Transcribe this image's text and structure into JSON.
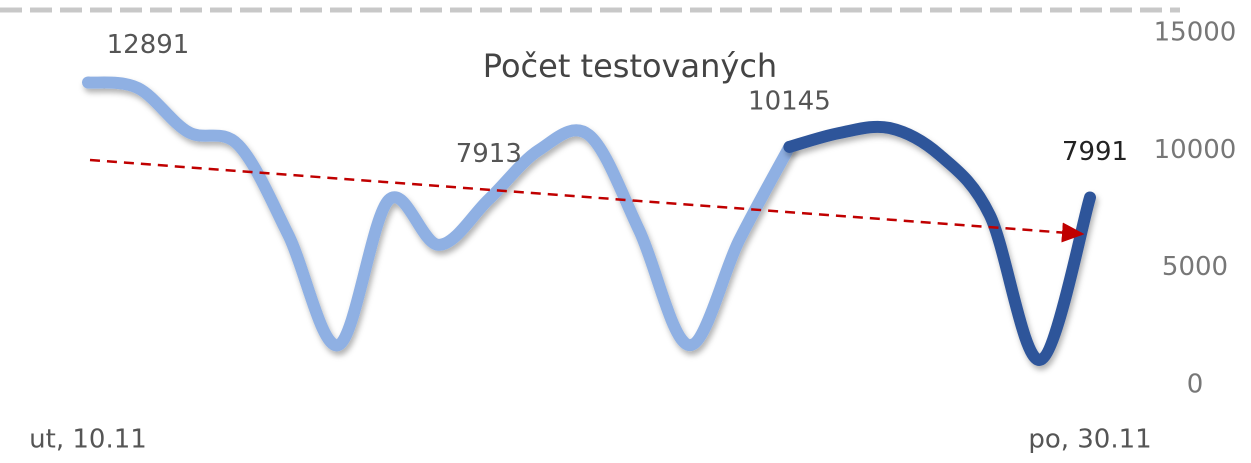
{
  "chart_data": {
    "type": "line",
    "title": "Počet testovaných",
    "categories": [
      "ut, 10.11",
      null,
      null,
      null,
      null,
      null,
      null,
      null,
      null,
      null,
      null,
      null,
      null,
      null,
      null,
      null,
      null,
      null,
      null,
      null,
      "po, 30.11"
    ],
    "series": [
      {
        "color": "#8fb0e3",
        "values": [
          12891,
          12650,
          10780,
          10230,
          6390,
          1700,
          7880,
          5970,
          7913,
          10010,
          10650,
          6600,
          1700,
          6180,
          10145,
          null,
          null,
          null,
          null,
          null,
          null
        ]
      },
      {
        "color": "#2f559a",
        "values": [
          null,
          null,
          null,
          null,
          null,
          null,
          null,
          null,
          null,
          null,
          null,
          null,
          null,
          null,
          10145,
          10740,
          10950,
          9800,
          7240,
          1070,
          7991
        ]
      }
    ],
    "value_label_indices": [
      0,
      8,
      14,
      20
    ],
    "ylim": [
      0,
      15000
    ],
    "yticks": [
      0,
      5000,
      10000,
      15000
    ]
  }
}
